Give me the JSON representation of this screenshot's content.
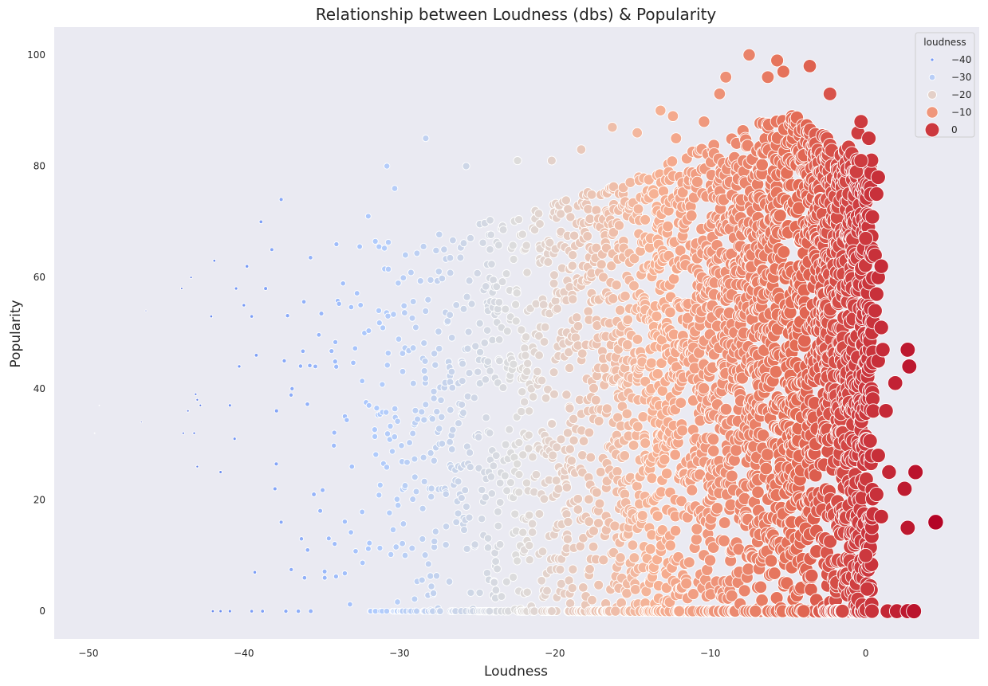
{
  "chart_data": {
    "type": "scatter",
    "title": "Relationship between Loudness (dbs) & Popularity",
    "xlabel": "Loudness",
    "ylabel": "Popularity",
    "xlim": [
      -52.2,
      7.3
    ],
    "ylim": [
      -5,
      105
    ],
    "x_ticks": [
      -50,
      -40,
      -30,
      -20,
      -10,
      0
    ],
    "x_tick_labels": [
      "−50",
      "−40",
      "−30",
      "−20",
      "−10",
      "0"
    ],
    "y_ticks": [
      0,
      20,
      40,
      60,
      80,
      100
    ],
    "y_tick_labels": [
      "0",
      "20",
      "40",
      "60",
      "80",
      "100"
    ],
    "grid": false,
    "background": "#eaeaf2",
    "colormap": "coolwarm",
    "colormap_stops": [
      "#3b4cc0",
      "#7396f5",
      "#b0cbfc",
      "#dddcdc",
      "#f6b194",
      "#e36c55",
      "#b40426"
    ],
    "hue_and_size_variable": "loudness",
    "legend": {
      "title": "loudness",
      "placement": "top-right",
      "entries": [
        {
          "label": "−40",
          "value": -40
        },
        {
          "label": "−30",
          "value": -30
        },
        {
          "label": "−20",
          "value": -20
        },
        {
          "label": "−10",
          "value": -10
        },
        {
          "label": "0",
          "value": 0
        }
      ]
    },
    "points": [
      [
        -49.3,
        37
      ],
      [
        -49.6,
        32
      ],
      [
        -46.6,
        34
      ],
      [
        -46.3,
        54
      ],
      [
        -44.0,
        58
      ],
      [
        -43.6,
        36
      ],
      [
        -43.4,
        60
      ],
      [
        -43.1,
        39
      ],
      [
        -43.0,
        38
      ],
      [
        -42.8,
        37
      ],
      [
        -43.0,
        26
      ],
      [
        -43.9,
        32
      ],
      [
        -43.2,
        32
      ],
      [
        -42.1,
        53
      ],
      [
        -41.9,
        63
      ],
      [
        -41.5,
        25
      ],
      [
        -40.9,
        37
      ],
      [
        -40.6,
        31
      ],
      [
        -40.5,
        58
      ],
      [
        -40.3,
        44
      ],
      [
        -40.0,
        55
      ],
      [
        -39.5,
        53
      ],
      [
        -39.8,
        62
      ],
      [
        -39.2,
        46
      ],
      [
        -38.9,
        70
      ],
      [
        -38.6,
        58
      ],
      [
        -38.2,
        65
      ],
      [
        -37.6,
        74
      ],
      [
        -37.9,
        36
      ],
      [
        -38.0,
        22
      ],
      [
        -37.6,
        16
      ],
      [
        -42.0,
        0
      ],
      [
        -41.5,
        0
      ],
      [
        -40.9,
        0
      ],
      [
        -39.5,
        0
      ],
      [
        -38.8,
        0
      ],
      [
        -37.3,
        0
      ],
      [
        -36.5,
        0
      ],
      [
        -35.7,
        0
      ],
      [
        -39.3,
        7
      ],
      [
        -37.4,
        45
      ],
      [
        -36.9,
        40
      ],
      [
        -36.3,
        13
      ],
      [
        -35.9,
        11
      ],
      [
        -35.5,
        21
      ],
      [
        -35.4,
        44
      ],
      [
        -34.8,
        6
      ],
      [
        -36.1,
        6
      ],
      [
        -32.0,
        71
      ],
      [
        -30.8,
        80
      ],
      [
        -30.3,
        76
      ],
      [
        -28.3,
        85
      ],
      [
        -25.7,
        80
      ],
      [
        -22.4,
        81
      ],
      [
        -20.2,
        81
      ],
      [
        -18.3,
        83
      ],
      [
        -16.3,
        87
      ],
      [
        -14.7,
        86
      ],
      [
        -13.2,
        90
      ],
      [
        -12.4,
        89
      ],
      [
        -12.2,
        85
      ],
      [
        -10.4,
        88
      ],
      [
        -9.4,
        93
      ],
      [
        -9.0,
        96
      ],
      [
        -7.5,
        100
      ],
      [
        -6.3,
        96
      ],
      [
        -5.7,
        99
      ],
      [
        -5.3,
        97
      ],
      [
        -3.6,
        98
      ],
      [
        -2.3,
        93
      ],
      [
        -0.3,
        88
      ],
      [
        -0.5,
        86
      ],
      [
        0.2,
        85
      ],
      [
        -0.3,
        81
      ],
      [
        -0.6,
        79
      ],
      [
        0.7,
        75
      ],
      [
        0.8,
        78
      ],
      [
        0.0,
        67
      ],
      [
        0.6,
        64
      ],
      [
        1.0,
        62
      ],
      [
        0.8,
        60
      ],
      [
        0.7,
        57
      ],
      [
        0.6,
        54
      ],
      [
        1.0,
        51
      ],
      [
        1.1,
        47
      ],
      [
        0.8,
        45
      ],
      [
        2.7,
        47
      ],
      [
        2.8,
        44
      ],
      [
        1.9,
        41
      ],
      [
        1.3,
        36
      ],
      [
        0.8,
        28
      ],
      [
        1.5,
        25
      ],
      [
        0.7,
        21
      ],
      [
        2.5,
        22
      ],
      [
        1.0,
        17
      ],
      [
        2.7,
        15
      ],
      [
        3.2,
        25
      ],
      [
        4.5,
        16
      ],
      [
        2.0,
        0
      ],
      [
        2.7,
        0
      ],
      [
        3.1,
        0
      ],
      [
        1.4,
        0
      ],
      [
        0.4,
        0
      ],
      [
        0.1,
        4
      ],
      [
        0.0,
        10
      ],
      [
        -24.2,
        0
      ],
      [
        -20.2,
        0
      ],
      [
        -16.1,
        0
      ],
      [
        -12.0,
        0
      ],
      [
        -7.1,
        0
      ],
      [
        -4.0,
        0
      ],
      [
        -1.5,
        0
      ]
    ]
  }
}
